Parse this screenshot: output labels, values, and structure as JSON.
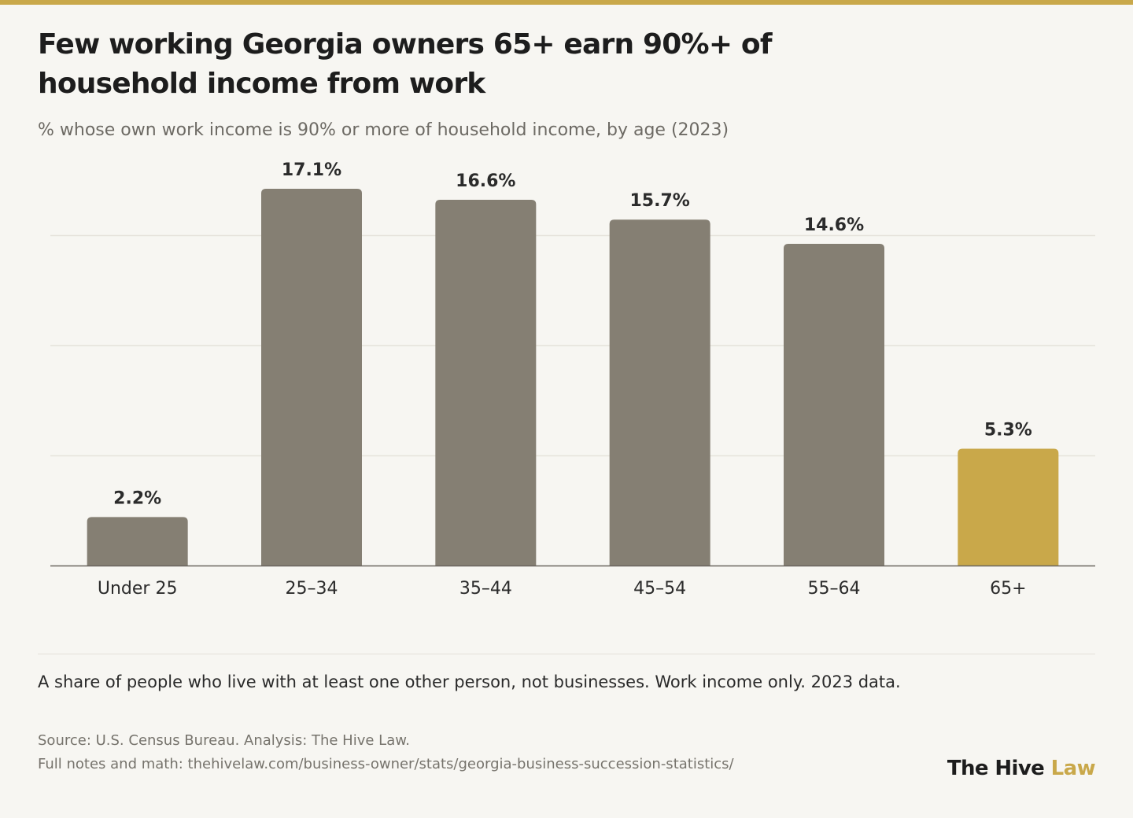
{
  "header": {
    "title": "Few working Georgia owners 65+ earn 90%+ of household income from work",
    "subtitle": "% whose own work income is 90% or more of household income, by age (2023)"
  },
  "colors": {
    "accent": "#c9a84a",
    "bar": "#857f73",
    "highlight": "#c9a84a",
    "grid": "#e6e3dc",
    "axis": "#6a665f",
    "background": "#f7f6f2"
  },
  "chart_data": {
    "type": "bar",
    "categories": [
      "Under 25",
      "25–34",
      "35–44",
      "45–54",
      "55–64",
      "65+"
    ],
    "values": [
      2.2,
      17.1,
      16.6,
      15.7,
      14.6,
      5.3
    ],
    "value_labels": [
      "2.2%",
      "17.1%",
      "16.6%",
      "15.7%",
      "14.6%",
      "5.3%"
    ],
    "highlight_category": "65+",
    "ylim": [
      0,
      20
    ],
    "grid_values": [
      5,
      10,
      15
    ],
    "grid": true,
    "ytick_labels_shown": false
  },
  "footer": {
    "note": "A share of people who live with at least one other person, not businesses. Work income only. 2023 data.",
    "source": "Source: U.S. Census Bureau. Analysis: The Hive Law.",
    "link": "Full notes and math: thehivelaw.com/business-owner/stats/georgia-business-succession-statistics/",
    "brand_main": "The Hive",
    "brand_accent": "Law"
  }
}
